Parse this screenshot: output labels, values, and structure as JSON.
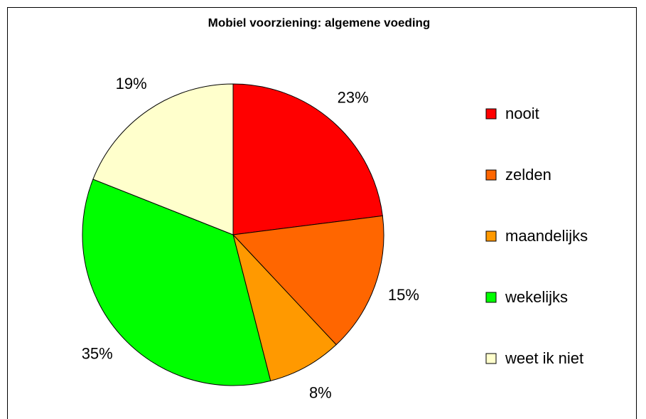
{
  "chart_data": {
    "type": "pie",
    "title": "Mobiel voorziening: algemene voeding",
    "categories": [
      "nooit",
      "zelden",
      "maandelijks",
      "wekelijks",
      "weet ik niet"
    ],
    "values": [
      23,
      15,
      8,
      35,
      19
    ],
    "value_labels": [
      "23%",
      "15%",
      "8%",
      "35%",
      "19%"
    ],
    "colors": [
      "#ff0000",
      "#ff6600",
      "#ff9900",
      "#00ff00",
      "#ffffcc"
    ],
    "legend": "right"
  }
}
